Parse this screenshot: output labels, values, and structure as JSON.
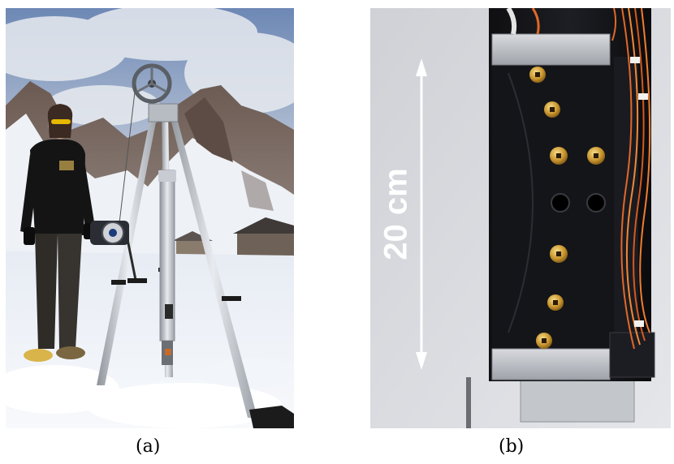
{
  "figure": {
    "panels": [
      {
        "caption": "(a)",
        "image": "photo-mountain-tripod-winch",
        "scene": [
          "snowy-mountain",
          "cloudy-sky",
          "person",
          "aluminum-tripod",
          "pulley-wheel",
          "winch",
          "cylindrical-probe",
          "buildings"
        ]
      },
      {
        "caption": "(b)",
        "image": "photo-black-sensor-holder",
        "annotation": {
          "label": "20 cm",
          "arrow": "double-headed-vertical",
          "color": "#ffffff"
        },
        "scene": [
          "black-mount",
          "brass-photodiodes",
          "orange-wires",
          "metal-bracket"
        ]
      }
    ]
  }
}
